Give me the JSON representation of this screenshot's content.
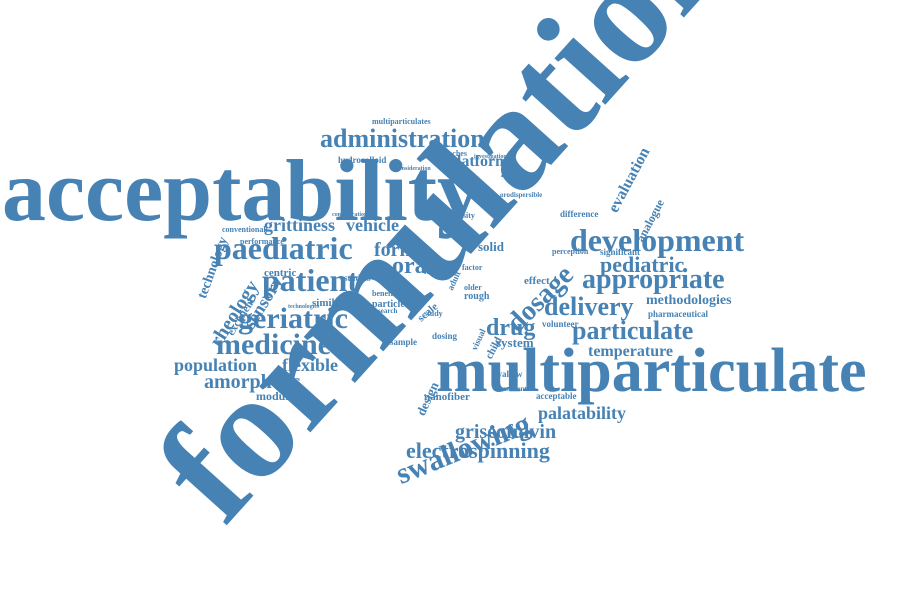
{
  "color": "#4682b4",
  "words": {
    "formulation": "formulation",
    "acceptability": "acceptability",
    "multiparticulate": "multiparticulate",
    "development": "development",
    "administration": "administration",
    "paediatric": "paediatric",
    "patient": "patient",
    "geriatric": "geriatric",
    "medicine": "medicine",
    "swallowing": "swallowing",
    "griseofulvin": "griseofulvin",
    "electrospinning": "electrospinning",
    "palatability": "palatability",
    "particulate": "particulate",
    "appropriate": "appropriate",
    "delivery": "delivery",
    "dosage": "dosage",
    "drug": "drug",
    "oral": "oral",
    "form": "form",
    "pediatric": "pediatric",
    "methodologies": "methodologies",
    "temperature": "temperature",
    "population": "population",
    "flexible": "flexible",
    "amorphous": "amorphous",
    "modulated": "modulated",
    "nanofiber": "nanofiber",
    "acceptable": "acceptable",
    "grittiness": "grittiness",
    "vehicle": "vehicle",
    "rheology": "rheology",
    "sensory": "sensory",
    "technology": "technology",
    "evaluation": "evaluation",
    "analogue": "analogue",
    "platform": "platform",
    "multiparticulates": "multiparticulates",
    "hydrocolloid": "hydrocolloid",
    "conventional": "conventional",
    "centric": "centric",
    "excipient": "excipient",
    "similarities": "similarities",
    "system": "system",
    "solid": "solid",
    "design": "design",
    "child": "child",
    "volunteer": "volunteer",
    "pharmaceutical": "pharmaceutical",
    "significant": "significant",
    "difference": "difference",
    "perception": "perception",
    "mouth": "mouth",
    "approaches": "approaches",
    "effect": "effect",
    "swallow": "swallow",
    "dosing": "dosing",
    "media": "media",
    "studies": "studies",
    "sample": "sample",
    "scale": "scale",
    "study": "study",
    "rough": "rough",
    "older": "older",
    "particle": "particle",
    "benefit": "benefit",
    "research": "research",
    "visual": "visual",
    "adult": "adult",
    "factor": "factor",
    "level": "level",
    "viscosity": "viscosity",
    "performance": "performance",
    "technologies": "technologies",
    "assessment": "assessment",
    "concentration": "concentration",
    "consideration": "consideration",
    "investigation": "investigation",
    "orodispersible": "orodispersible"
  }
}
